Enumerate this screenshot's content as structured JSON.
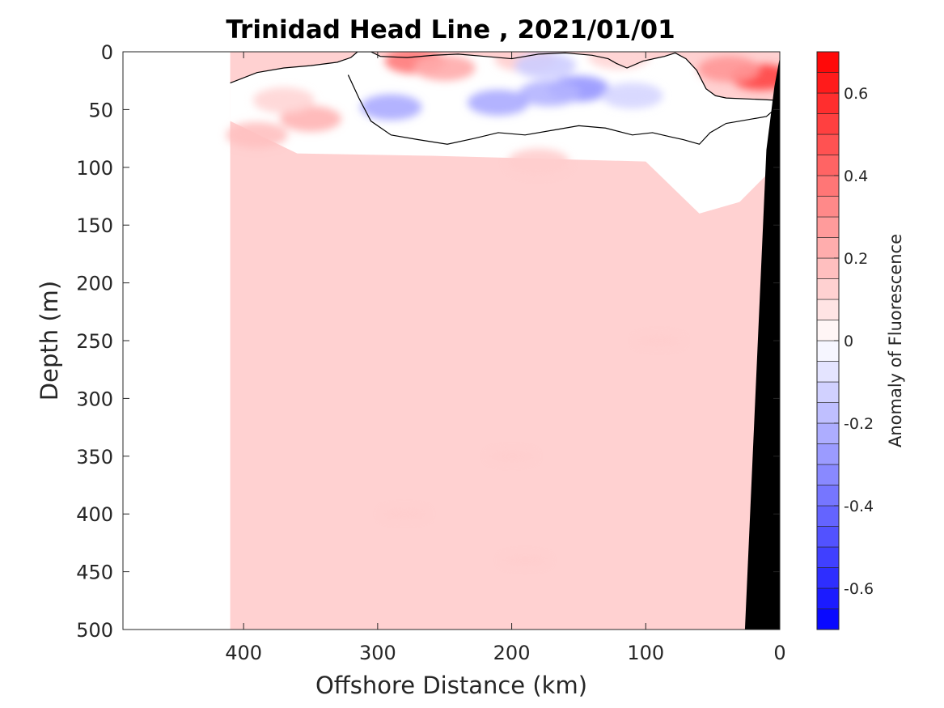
{
  "chart_data": {
    "type": "heatmap",
    "title": "Trinidad Head Line , 2021/01/01",
    "xlabel": "Offshore Distance (km)",
    "ylabel": "Depth (m)",
    "xlim": [
      490,
      0
    ],
    "ylim": [
      0,
      500
    ],
    "x_reversed": true,
    "y_reversed": true,
    "x_ticks": [
      400,
      300,
      200,
      100,
      0
    ],
    "y_ticks": [
      0,
      50,
      100,
      150,
      200,
      250,
      300,
      350,
      400,
      450,
      500
    ],
    "data_extent_km": [
      0,
      410
    ],
    "background_anomaly": 0.1,
    "colorbar": {
      "label": "Anomaly of Fluorescence",
      "range": [
        -0.7,
        0.7
      ],
      "step": 0.05,
      "ticks": [
        -0.6,
        -0.4,
        -0.2,
        0,
        0.2,
        0.4,
        0.6
      ],
      "tick_labels": [
        "-0.6",
        "-0.4",
        "-0.2",
        "0",
        "0.2",
        "0.4",
        "0.6"
      ],
      "colormap": "blue-white-red",
      "low_color": "#0000ff",
      "high_color": "#ff0000"
    },
    "zero_contour": {
      "upper_km": [
        410,
        390,
        370,
        350,
        330,
        320,
        315,
        305,
        298,
        278,
        258,
        240,
        220,
        200,
        180,
        160,
        140,
        128,
        122,
        114,
        102,
        86,
        78,
        70,
        62,
        55,
        48,
        40,
        20,
        2
      ],
      "upper_depth_m": [
        27,
        18,
        14,
        12,
        9,
        5,
        0,
        0,
        4,
        5,
        3,
        2,
        4,
        6,
        2,
        1,
        3,
        6,
        10,
        14,
        8,
        4,
        1,
        6,
        16,
        32,
        38,
        40,
        41,
        42
      ],
      "lower_km": [
        322,
        314,
        305,
        290,
        270,
        248,
        228,
        210,
        190,
        170,
        150,
        130,
        110,
        95,
        80,
        72,
        60,
        52,
        40,
        30,
        20,
        10,
        2
      ],
      "lower_depth_m": [
        20,
        40,
        60,
        72,
        76,
        80,
        75,
        70,
        72,
        68,
        64,
        66,
        72,
        70,
        74,
        76,
        80,
        70,
        62,
        60,
        58,
        56,
        48
      ]
    },
    "anomaly_features": [
      {
        "km": 272,
        "depth_m": 8,
        "value": 0.32
      },
      {
        "km": 250,
        "depth_m": 14,
        "value": 0.2
      },
      {
        "km": 190,
        "depth_m": 6,
        "value": 0.12
      },
      {
        "km": 120,
        "depth_m": 4,
        "value": 0.1
      },
      {
        "km": 14,
        "depth_m": 22,
        "value": 0.45
      },
      {
        "km": 38,
        "depth_m": 15,
        "value": 0.25
      },
      {
        "km": 150,
        "depth_m": 32,
        "value": -0.25
      },
      {
        "km": 172,
        "depth_m": 36,
        "value": -0.18
      },
      {
        "km": 210,
        "depth_m": 44,
        "value": -0.2
      },
      {
        "km": 290,
        "depth_m": 48,
        "value": -0.2
      },
      {
        "km": 175,
        "depth_m": 12,
        "value": -0.12
      },
      {
        "km": 110,
        "depth_m": 38,
        "value": -0.1
      },
      {
        "km": 350,
        "depth_m": 58,
        "value": 0.18
      },
      {
        "km": 390,
        "depth_m": 72,
        "value": 0.15
      },
      {
        "km": 370,
        "depth_m": 42,
        "value": 0.1
      },
      {
        "km": 180,
        "depth_m": 95,
        "value": 0.12
      },
      {
        "km": 200,
        "depth_m": 350,
        "value": 0.12
      },
      {
        "km": 280,
        "depth_m": 400,
        "value": 0.12
      },
      {
        "km": 190,
        "depth_m": 440,
        "value": 0.12
      },
      {
        "km": 90,
        "depth_m": 250,
        "value": 0.12
      }
    ],
    "bathymetry": {
      "km": [
        0,
        4,
        10,
        26,
        26,
        0
      ],
      "depth_m": [
        5,
        30,
        85,
        500,
        500,
        500
      ],
      "color": "#000000"
    }
  }
}
